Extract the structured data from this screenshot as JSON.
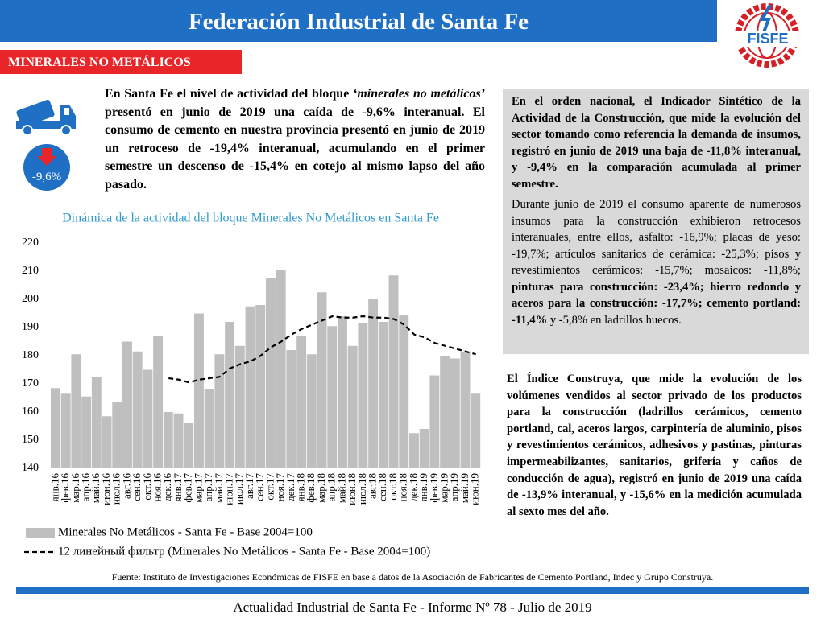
{
  "header": {
    "title": "Federación Industrial de Santa Fe",
    "logo_text": "FISFE"
  },
  "section_label": "MINERALES NO METÁLICOS",
  "badge": "-9,6%",
  "intro": [
    {
      "text": "En Santa Fe el nivel de actividad del bloque "
    },
    {
      "text": "‘minerales no metálicos’",
      "italic": true
    },
    {
      "text": " presentó en junio de 2019 una caída de -9,6% interanual. El consumo de cemento en nuestra provincia presentó en junio de 2019 un retroceso de -19,4% interanual, acumulando en el primer semestre un descenso de -15,4% en cotejo al mismo lapso del año pasado."
    }
  ],
  "box": {
    "paragraph1": "En el orden nacional, el Indicador Sintético de la Actividad de la Construcción, que mide la evolución del sector tomando como referencia la demanda de insumos, registró en junio de 2019 una baja de -11,8% interanual, y -9,4% en la comparación acumulada al primer semestre.",
    "paragraph2": [
      {
        "text": "Durante junio de 2019 el consumo aparente de numerosos insumos para la construcción exhibieron retrocesos interanuales, entre ellos, asfalto: -16,9%; placas de yeso: -19,7%; artículos sanitarios de cerámica: -25,3%; pisos y revestimientos cerámicos: -15,7%; mosaicos: -11,8%; "
      },
      {
        "text": "pinturas para construcción: -23,4%;  hierro redondo y aceros para la construcción: -17,7%; cemento portland: -11,4%",
        "bold": true
      },
      {
        "text": " y -5,8% en ladrillos huecos."
      }
    ]
  },
  "construya": "El Índice Construya, que mide la evolución de los volúmenes vendidos al sector privado de los productos para la construcción (ladrillos cerámicos, cemento portland, cal, aceros largos, carpintería de aluminio, pisos y revestimientos cerámicos, adhesivos y pastinas, pinturas impermeabilizantes, sanitarios, grifería y caños de conducción de agua), registró en junio de 2019 una caída de -13,9% interanual, y -15,6% en la medición acumulada al sexto mes del año.",
  "source": "Fuente: Instituto de Investigaciones Económicas de FISFE en base a datos de la Asociación de Fabricantes de Cemento Portland, Indec y Grupo Construya.",
  "footer": "Actualidad Industrial de Santa Fe - Informe Nº 78 - Julio de 2019",
  "chart_data": {
    "type": "bar",
    "title": "Dinámica de la actividad del bloque Minerales No Metálicos en Santa Fe",
    "categories": [
      "янв.16",
      "фев.16",
      "мар.16",
      "апр.16",
      "май.16",
      "июн.16",
      "июл.16",
      "авг.16",
      "сен.16",
      "окт.16",
      "ноя.16",
      "дек.16",
      "янв.17",
      "фев.17",
      "мар.17",
      "апр.17",
      "май.17",
      "июн.17",
      "июл.17",
      "авг.17",
      "сен.17",
      "окт.17",
      "ноя.17",
      "дек.17",
      "янв.18",
      "фев.18",
      "мар.18",
      "апр.18",
      "май.18",
      "июн.18",
      "июл.18",
      "авг.18",
      "сен.18",
      "окт.18",
      "ноя.18",
      "дек.18",
      "янв.19",
      "фев.19",
      "мар.19",
      "апр.19",
      "май.19",
      "июн.19"
    ],
    "series": [
      {
        "name": "Minerales No Metálicos - Santa Fe - Base 2004=100",
        "type": "bar",
        "color": "#bfbfbf",
        "values": [
          168.5,
          166.5,
          180.5,
          165.5,
          172.5,
          158.5,
          163.5,
          185,
          181.5,
          175,
          187,
          160,
          159.5,
          156,
          195,
          168,
          180.5,
          192,
          183.5,
          197.5,
          198,
          207.5,
          210.5,
          182,
          187,
          180.5,
          202.5,
          190.5,
          194,
          183.5,
          191.5,
          200,
          192,
          208.5,
          194.5,
          152.5,
          154,
          173,
          180,
          179,
          181.5,
          166.5
        ]
      },
      {
        "name": "12 линейный фильтр (Minerales No Metálicos - Santa Fe - Base 2004=100)",
        "type": "line",
        "color": "#000000",
        "dashed": true,
        "values": [
          null,
          null,
          null,
          null,
          null,
          null,
          null,
          null,
          null,
          null,
          null,
          172,
          171.5,
          170.5,
          171.5,
          172,
          172.5,
          175.5,
          177,
          178,
          180,
          183,
          185,
          187.5,
          189.5,
          191,
          192.5,
          194,
          193.5,
          193.5,
          194,
          193.5,
          193.5,
          193,
          191,
          187.5,
          186.5,
          184.5,
          183.5,
          182.5,
          181.5,
          180.5
        ]
      }
    ],
    "ylim": [
      140,
      220
    ],
    "yticks": [
      140,
      150,
      160,
      170,
      180,
      190,
      200,
      210,
      220
    ],
    "grid": false,
    "legend": "bottom"
  }
}
